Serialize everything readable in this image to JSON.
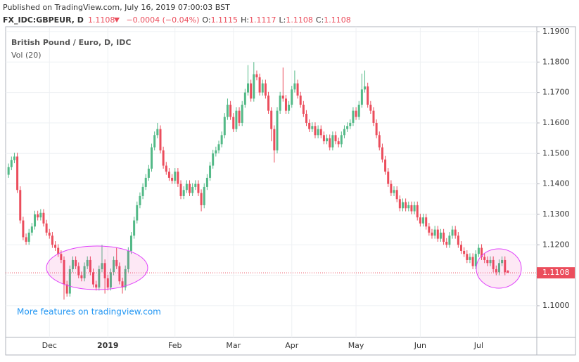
{
  "header": {
    "published": "Published on TradingView.com, July 16, 2019 07:00:03 BST",
    "symbol": "FX_IDC:GBPEUR, D",
    "change": "−0.0004 (−0.04%)",
    "o": "O:",
    "h": "H:",
    "l": "L:",
    "c": "C:"
  },
  "chart_data": {
    "type": "candlestick",
    "title": "British Pound / Euro, D, IDC",
    "subtitle": "Vol (20)",
    "annotation": "More features on tradingview.com",
    "up_color": "#53b987",
    "down_color": "#eb4d5c",
    "ylim": [
      1.0896,
      1.1916
    ],
    "yticks": [
      {
        "value": 1.1,
        "label": "1.1000"
      },
      {
        "value": 1.11,
        "label": "1.1100"
      },
      {
        "value": 1.12,
        "label": "1.1200"
      },
      {
        "value": 1.13,
        "label": "1.1300"
      },
      {
        "value": 1.14,
        "label": "1.1400"
      },
      {
        "value": 1.15,
        "label": "1.1500"
      },
      {
        "value": 1.16,
        "label": "1.1600"
      },
      {
        "value": 1.17,
        "label": "1.1700"
      },
      {
        "value": 1.18,
        "label": "1.1800"
      },
      {
        "value": 1.19,
        "label": "1.1900"
      }
    ],
    "xlim": [
      -1,
      180.9
    ],
    "xticks": [
      {
        "value": 14,
        "label": "Dec"
      },
      {
        "value": 34,
        "label": "2019"
      },
      {
        "value": 57,
        "label": "Feb"
      },
      {
        "value": 77,
        "label": "Mar"
      },
      {
        "value": 97,
        "label": "Apr"
      },
      {
        "value": 119,
        "label": "May"
      },
      {
        "value": 141,
        "label": "Jun"
      },
      {
        "value": 161,
        "label": "Jul"
      }
    ],
    "open": [
      1.143,
      1.1455,
      1.1478,
      1.149,
      1.138,
      1.128,
      1.1225,
      1.121,
      1.124,
      1.126,
      1.13,
      1.129,
      1.1305,
      1.127,
      1.124,
      1.123,
      1.12,
      1.119,
      1.117,
      1.115,
      1.107,
      1.104,
      1.112,
      1.115,
      1.113,
      1.11,
      1.109,
      1.113,
      1.115,
      1.111,
      1.107,
      1.106,
      1.112,
      1.114,
      1.109,
      1.106,
      1.111,
      1.115,
      1.113,
      1.108,
      1.106,
      1.112,
      1.118,
      1.123,
      1.128,
      1.133,
      1.136,
      1.139,
      1.142,
      1.145,
      1.152,
      1.156,
      1.158,
      1.151,
      1.146,
      1.144,
      1.142,
      1.141,
      1.144,
      1.14,
      1.136,
      1.138,
      1.14,
      1.137,
      1.139,
      1.14,
      1.137,
      1.133,
      1.139,
      1.142,
      1.146,
      1.15,
      1.151,
      1.153,
      1.156,
      1.162,
      1.166,
      1.162,
      1.158,
      1.164,
      1.16,
      1.166,
      1.17,
      1.173,
      1.168,
      1.176,
      1.175,
      1.17,
      1.173,
      1.169,
      1.164,
      1.158,
      1.151,
      1.164,
      1.169,
      1.168,
      1.164,
      1.166,
      1.171,
      1.173,
      1.169,
      1.166,
      1.163,
      1.16,
      1.158,
      1.159,
      1.156,
      1.158,
      1.156,
      1.154,
      1.155,
      1.152,
      1.156,
      1.154,
      1.153,
      1.156,
      1.158,
      1.159,
      1.16,
      1.164,
      1.162,
      1.166,
      1.171,
      1.172,
      1.166,
      1.164,
      1.16,
      1.156,
      1.152,
      1.148,
      1.144,
      1.14,
      1.137,
      1.138,
      1.135,
      1.132,
      1.134,
      1.132,
      1.133,
      1.131,
      1.133,
      1.129,
      1.127,
      1.129,
      1.126,
      1.124,
      1.123,
      1.125,
      1.122,
      1.124,
      1.121,
      1.12,
      1.123,
      1.125,
      1.123,
      1.12,
      1.118,
      1.117,
      1.115,
      1.116,
      1.113,
      1.117,
      1.119,
      1.116,
      1.115,
      1.114,
      1.115,
      1.112,
      1.111,
      1.114,
      1.115,
      1.1115
    ],
    "high": [
      1.1467,
      1.149,
      1.1502,
      1.1502,
      1.1392,
      1.1292,
      1.1237,
      1.1252,
      1.1272,
      1.1312,
      1.1312,
      1.1317,
      1.1317,
      1.1282,
      1.1252,
      1.1242,
      1.1212,
      1.1202,
      1.1182,
      1.1162,
      1.1082,
      1.1132,
      1.1162,
      1.1162,
      1.1142,
      1.1112,
      1.1142,
      1.1162,
      1.1162,
      1.1122,
      1.1082,
      1.1132,
      1.12,
      1.1152,
      1.1102,
      1.1122,
      1.1162,
      1.119,
      1.1142,
      1.1092,
      1.1132,
      1.1192,
      1.1242,
      1.1292,
      1.1342,
      1.1372,
      1.1402,
      1.1432,
      1.1462,
      1.1532,
      1.1572,
      1.16,
      1.1592,
      1.1522,
      1.1472,
      1.1452,
      1.1432,
      1.1452,
      1.1452,
      1.1412,
      1.1392,
      1.1412,
      1.1412,
      1.1402,
      1.1412,
      1.1412,
      1.1382,
      1.1402,
      1.1432,
      1.1472,
      1.1512,
      1.1522,
      1.1542,
      1.1572,
      1.1632,
      1.168,
      1.1672,
      1.1632,
      1.1652,
      1.1652,
      1.1672,
      1.1712,
      1.179,
      1.1742,
      1.18,
      1.1772,
      1.1762,
      1.1742,
      1.1742,
      1.1702,
      1.1652,
      1.1592,
      1.1652,
      1.1702,
      1.1782,
      1.1692,
      1.1672,
      1.1722,
      1.1772,
      1.1742,
      1.1702,
      1.1672,
      1.1642,
      1.1612,
      1.1602,
      1.1602,
      1.1592,
      1.1592,
      1.1572,
      1.1562,
      1.1562,
      1.1572,
      1.1572,
      1.1552,
      1.1572,
      1.1592,
      1.1602,
      1.1612,
      1.1652,
      1.1652,
      1.1672,
      1.1762,
      1.1772,
      1.1732,
      1.1672,
      1.1652,
      1.1612,
      1.1572,
      1.1532,
      1.1492,
      1.1452,
      1.1412,
      1.1392,
      1.1392,
      1.1362,
      1.1352,
      1.1352,
      1.1342,
      1.1342,
      1.1342,
      1.1342,
      1.1302,
      1.1302,
      1.1302,
      1.1272,
      1.1252,
      1.1262,
      1.1262,
      1.1252,
      1.1252,
      1.1222,
      1.1242,
      1.1262,
      1.1262,
      1.1242,
      1.1212,
      1.1192,
      1.1182,
      1.1172,
      1.1172,
      1.1182,
      1.1202,
      1.1202,
      1.1172,
      1.1162,
      1.1162,
      1.1162,
      1.1132,
      1.1152,
      1.1162,
      1.1162,
      1.1117
    ],
    "low": [
      1.142,
      1.1445,
      1.1468,
      1.137,
      1.127,
      1.1215,
      1.12,
      1.12,
      1.123,
      1.125,
      1.128,
      1.128,
      1.126,
      1.123,
      1.122,
      1.119,
      1.118,
      1.116,
      1.114,
      1.102,
      1.103,
      1.103,
      1.111,
      1.112,
      1.109,
      1.108,
      1.108,
      1.112,
      1.11,
      1.106,
      1.105,
      1.105,
      1.111,
      1.104,
      1.105,
      1.105,
      1.11,
      1.112,
      1.107,
      1.104,
      1.105,
      1.111,
      1.117,
      1.122,
      1.127,
      1.132,
      1.135,
      1.138,
      1.141,
      1.144,
      1.151,
      1.155,
      1.15,
      1.145,
      1.143,
      1.141,
      1.14,
      1.14,
      1.139,
      1.135,
      1.135,
      1.137,
      1.136,
      1.136,
      1.138,
      1.136,
      1.131,
      1.132,
      1.138,
      1.141,
      1.145,
      1.149,
      1.15,
      1.152,
      1.155,
      1.161,
      1.161,
      1.157,
      1.157,
      1.159,
      1.159,
      1.165,
      1.169,
      1.167,
      1.167,
      1.174,
      1.169,
      1.169,
      1.168,
      1.163,
      1.154,
      1.147,
      1.15,
      1.163,
      1.167,
      1.163,
      1.163,
      1.165,
      1.17,
      1.168,
      1.165,
      1.162,
      1.159,
      1.157,
      1.157,
      1.155,
      1.155,
      1.155,
      1.153,
      1.153,
      1.151,
      1.151,
      1.153,
      1.152,
      1.152,
      1.155,
      1.157,
      1.158,
      1.159,
      1.161,
      1.161,
      1.165,
      1.17,
      1.165,
      1.163,
      1.159,
      1.155,
      1.151,
      1.147,
      1.143,
      1.139,
      1.136,
      1.136,
      1.134,
      1.131,
      1.131,
      1.131,
      1.131,
      1.13,
      1.13,
      1.128,
      1.126,
      1.126,
      1.125,
      1.123,
      1.122,
      1.122,
      1.121,
      1.121,
      1.12,
      1.119,
      1.119,
      1.122,
      1.122,
      1.119,
      1.117,
      1.116,
      1.114,
      1.114,
      1.112,
      1.112,
      1.116,
      1.115,
      1.114,
      1.113,
      1.113,
      1.111,
      1.11,
      1.11,
      1.113,
      1.11,
      1.1108
    ],
    "close": [
      1.1455,
      1.1478,
      1.149,
      1.138,
      1.128,
      1.1225,
      1.121,
      1.124,
      1.126,
      1.13,
      1.129,
      1.1305,
      1.127,
      1.124,
      1.123,
      1.12,
      1.119,
      1.117,
      1.115,
      1.107,
      1.104,
      1.112,
      1.115,
      1.113,
      1.11,
      1.109,
      1.113,
      1.115,
      1.111,
      1.107,
      1.106,
      1.112,
      1.114,
      1.109,
      1.106,
      1.111,
      1.115,
      1.113,
      1.108,
      1.106,
      1.112,
      1.118,
      1.123,
      1.128,
      1.133,
      1.136,
      1.139,
      1.142,
      1.145,
      1.152,
      1.156,
      1.158,
      1.151,
      1.146,
      1.144,
      1.142,
      1.141,
      1.144,
      1.14,
      1.136,
      1.138,
      1.14,
      1.137,
      1.139,
      1.14,
      1.137,
      1.133,
      1.139,
      1.142,
      1.146,
      1.15,
      1.151,
      1.153,
      1.156,
      1.162,
      1.166,
      1.162,
      1.158,
      1.164,
      1.16,
      1.166,
      1.17,
      1.173,
      1.168,
      1.176,
      1.175,
      1.17,
      1.173,
      1.169,
      1.164,
      1.158,
      1.151,
      1.164,
      1.169,
      1.168,
      1.164,
      1.166,
      1.171,
      1.173,
      1.169,
      1.166,
      1.163,
      1.16,
      1.158,
      1.159,
      1.156,
      1.158,
      1.156,
      1.154,
      1.155,
      1.152,
      1.156,
      1.154,
      1.153,
      1.156,
      1.158,
      1.159,
      1.16,
      1.164,
      1.162,
      1.166,
      1.171,
      1.172,
      1.166,
      1.164,
      1.16,
      1.156,
      1.152,
      1.148,
      1.144,
      1.14,
      1.137,
      1.138,
      1.135,
      1.132,
      1.134,
      1.132,
      1.133,
      1.131,
      1.133,
      1.129,
      1.127,
      1.129,
      1.126,
      1.124,
      1.123,
      1.125,
      1.122,
      1.124,
      1.121,
      1.12,
      1.123,
      1.125,
      1.123,
      1.12,
      1.118,
      1.117,
      1.115,
      1.116,
      1.113,
      1.117,
      1.119,
      1.116,
      1.115,
      1.114,
      1.115,
      1.112,
      1.111,
      1.114,
      1.115,
      1.111,
      1.1108
    ]
  }
}
